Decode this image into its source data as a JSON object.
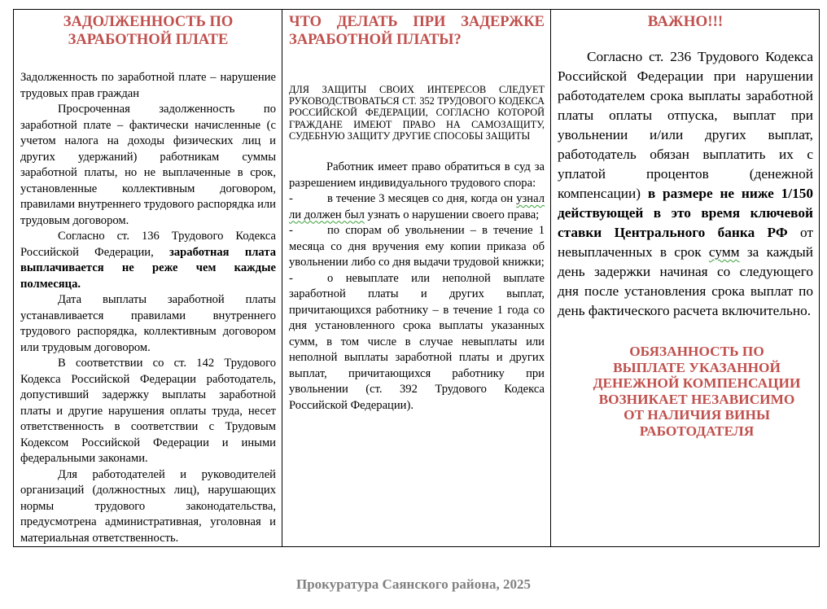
{
  "col1": {
    "title": [
      "ЗАДОЛЖЕННОСТЬ ПО",
      "ЗАРАБОТНОЙ ПЛАТЕ"
    ],
    "p1": "Задолженность по заработной плате – нарушение трудовых прав граждан",
    "p2": "Просроченная задолженность по заработной плате – фактически начисленные (с учетом налога на доходы физических лиц и других удержаний) работникам суммы заработной платы, но не выплаченные в срок, установленные коллективным договором, правилами внутреннего трудового распорядка или трудовым договором.",
    "p3_plain": "Согласно ст. 136 Трудового Кодекса Российской Федерации, ",
    "p3_bold": "заработная плата выплачивается не реже чем каждые полмесяца.",
    "p4": "Дата выплаты заработной платы устанавливается правилами внутреннего трудового распорядка, коллективным договором или трудовым договором.",
    "p5": "В соответствии со ст. 142 Трудового Кодекса Российской Федерации работодатель, допустивший задержку выплаты заработной платы и другие нарушения оплаты труда, несет ответственность в соответствии с Трудовым Кодексом Российской Федерации и иными федеральными законами.",
    "p6": "Для работодателей и руководителей организаций (должностных лиц), нарушающих нормы трудового законодательства, предусмотрена административная, уголовная и материальная ответственность."
  },
  "col2": {
    "title": "ЧТО ДЕЛАТЬ ПРИ ЗАДЕРЖКЕ ЗАРАБОТНОЙ ПЛАТЫ?",
    "caps": "ДЛЯ ЗАЩИТЫ СВОИХ ИНТЕРЕСОВ СЛЕДУЕТ РУКОВОДСТВОВАТЬСЯ СТ. 352 ТРУДОВОГО КОДЕКСА РОССИЙСКОЙ ФЕДЕРАЦИИ, СОГЛАСНО КОТОРОЙ ГРАЖДАНЕ ИМЕЮТ ПРАВО НА САМОЗАЩИТУ, СУДЕБНУЮ ЗАЩИТУ ДРУГИЕ СПОСОБЫ ЗАЩИТЫ",
    "intro": "Работник имеет право обратиться в суд за разрешением индивидуального трудового спора:",
    "dash": "-",
    "item1_a": "в течение 3 месяцев со дня, когда он ",
    "item1_sq": "узнал ли должен был",
    "item1_b": " узнать о нарушении своего права;",
    "item2": "по спорам об увольнении – в течение 1 месяца со дня вручения ему копии приказа об увольнении либо со дня выдачи трудовой книжки;",
    "item3": "о невыплате или неполной выплате заработной платы и других выплат, причитающихся работнику – в течение 1 года со дня установленного срока выплаты указанных сумм, в том числе в случае невыплаты или неполной выплаты заработной платы и других выплат, причитающихся работнику при увольнении (ст. 392 Трудового Кодекса Российской Федерации)."
  },
  "col3": {
    "title": "ВАЖНО!!!",
    "body_a": "Согласно ст. 236 Трудового Кодекса Российской Федерации при нарушении работодателем срока выплаты заработной платы оплаты отпуска, выплат при увольнении и/или других выплат, работодатель обязан выплатить их с уплатой процентов (денежной компенсации) ",
    "body_bold": "в размере не ниже 1/150 действующей в это время ключевой ставки Центрального банка РФ",
    "body_b": " от невыплаченных в срок ",
    "body_sq": "сумм",
    "body_c": " за каждый день задержки начиная со следующего дня после установления срока выплат по день фактического расчета включительно.",
    "notice": [
      "ОБЯЗАННОСТЬ ПО",
      "ВЫПЛАТЕ УКАЗАННОЙ",
      "ДЕНЕЖНОЙ КОМПЕНСАЦИИ",
      "ВОЗНИКАЕТ НЕЗАВИСИМО",
      "ОТ НАЛИЧИЯ ВИНЫ",
      "РАБОТОДАТЕЛЯ"
    ]
  },
  "footer": "Прокуратура Саянского района, 2025",
  "colors": {
    "heading_red": "#c0504d",
    "footer_gray": "#808080"
  }
}
